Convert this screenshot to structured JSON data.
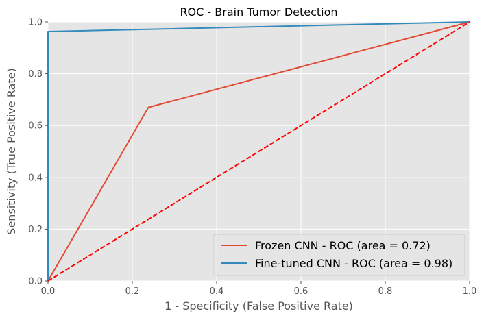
{
  "chart_data": {
    "type": "line",
    "title": "ROC - Brain Tumor Detection",
    "xlabel": "1 - Specificity (False Positive Rate)",
    "ylabel": "Sensitivity (True Positive Rate)",
    "xlim": [
      0.0,
      1.0
    ],
    "ylim": [
      0.0,
      1.0
    ],
    "xticks": [
      "0.0",
      "0.2",
      "0.4",
      "0.6",
      "0.8",
      "1.0"
    ],
    "yticks": [
      "0.0",
      "0.2",
      "0.4",
      "0.6",
      "0.8",
      "1.0"
    ],
    "grid": true,
    "legend_position": "bottom-right",
    "series": [
      {
        "name": "Frozen CNN - ROC (area = 0.72)",
        "color": "#e24a33",
        "style": "solid",
        "x": [
          0.0,
          0.238,
          1.0
        ],
        "y": [
          0.0,
          0.67,
          1.0
        ]
      },
      {
        "name": "Fine-tuned CNN - ROC (area = 0.98)",
        "color": "#348abd",
        "style": "solid",
        "x": [
          0.0,
          0.0,
          0.004,
          1.0
        ],
        "y": [
          0.0,
          0.963,
          0.963,
          1.0
        ]
      },
      {
        "color": "#ff0000",
        "style": "dashed",
        "x": [
          0.0,
          1.0
        ],
        "y": [
          0.0,
          1.0
        ]
      }
    ]
  }
}
